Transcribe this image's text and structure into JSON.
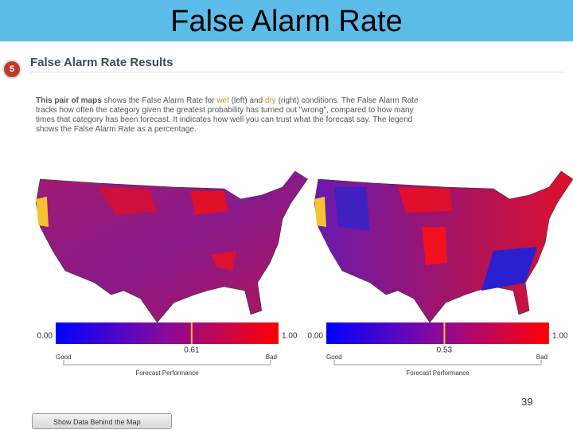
{
  "header": {
    "title": "False Alarm Rate"
  },
  "panel": {
    "step": "5",
    "heading": "False Alarm Rate Results",
    "intro": [
      "This pair of maps",
      " shows the False Alarm Rate for ",
      "wet",
      " (left) and ",
      "dry",
      " (right) conditions. The False Alarm Rate tracks how often the category given the greatest probability has turned out \"wrong\", compared to how many times that category has been forecast. It indicates how well you can trust what the forecast say. The legend shows the False Alarm Rate as a percentage."
    ],
    "maps": [
      {
        "legend": {
          "min": {
            "value": 0,
            "label": "0.00"
          },
          "max": {
            "value": 1,
            "label": "1.00"
          },
          "marker": 0.61,
          "low_label": "Good",
          "high_label": "Bad",
          "axis_label": "Forecast Performance"
        }
      },
      {
        "legend": {
          "min": {
            "value": 0,
            "label": "0.00"
          },
          "max": {
            "value": 1,
            "label": "1.00"
          },
          "marker": 0.53,
          "low_label": "Good",
          "high_label": "Bad",
          "axis_label": "Forecast Performance"
        }
      }
    ],
    "button": "Show Data Behind the Map"
  },
  "page_number": "39"
}
